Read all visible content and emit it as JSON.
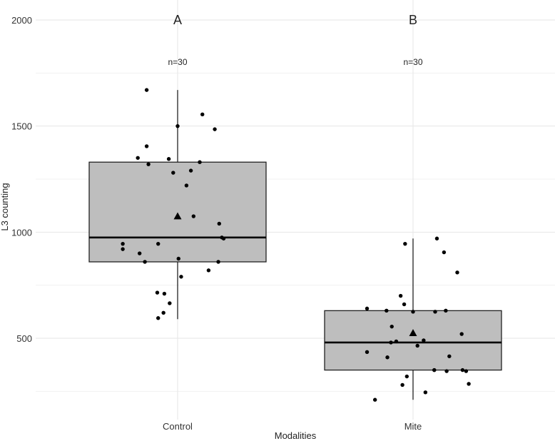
{
  "chart_data": {
    "type": "box",
    "title": "",
    "xlabel": "Modalities",
    "ylabel": "L3 counting",
    "ylim": [
      160,
      2050
    ],
    "yticks": [
      500,
      1000,
      1500,
      2000
    ],
    "categories": [
      "Control",
      "Mite"
    ],
    "groups": [
      {
        "name": "Control",
        "letter": "A",
        "n_label": "n=30",
        "box": {
          "min": 590,
          "q1": 860,
          "median": 975,
          "q3": 1330,
          "max": 1670
        },
        "mean": 1075,
        "points": [
          [
            -0.35,
            1670
          ],
          [
            -0.35,
            1405
          ],
          [
            -0.45,
            1350
          ],
          [
            -0.33,
            1320
          ],
          [
            -0.1,
            1345
          ],
          [
            0.0,
            1500
          ],
          [
            -0.05,
            1280
          ],
          [
            0.15,
            1290
          ],
          [
            0.25,
            1330
          ],
          [
            0.28,
            1555
          ],
          [
            0.42,
            1485
          ],
          [
            0.1,
            1220
          ],
          [
            0.18,
            1075
          ],
          [
            0.47,
            1040
          ],
          [
            0.5,
            975
          ],
          [
            0.52,
            970
          ],
          [
            -0.62,
            945
          ],
          [
            -0.22,
            945
          ],
          [
            -0.62,
            920
          ],
          [
            -0.43,
            900
          ],
          [
            -0.37,
            860
          ],
          [
            0.01,
            875
          ],
          [
            0.46,
            860
          ],
          [
            0.35,
            820
          ],
          [
            0.04,
            790
          ],
          [
            -0.23,
            715
          ],
          [
            -0.15,
            710
          ],
          [
            -0.09,
            665
          ],
          [
            -0.16,
            620
          ],
          [
            -0.22,
            595
          ]
        ]
      },
      {
        "name": "Mite",
        "letter": "B",
        "n_label": "n=30",
        "box": {
          "min": 210,
          "q1": 350,
          "median": 480,
          "q3": 630,
          "max": 970
        },
        "mean": 525,
        "points": [
          [
            0.27,
            970
          ],
          [
            -0.09,
            945
          ],
          [
            0.35,
            905
          ],
          [
            0.5,
            810
          ],
          [
            -0.14,
            700
          ],
          [
            -0.1,
            660
          ],
          [
            -0.52,
            640
          ],
          [
            -0.3,
            630
          ],
          [
            0.0,
            625
          ],
          [
            0.25,
            625
          ],
          [
            0.37,
            630
          ],
          [
            -0.24,
            555
          ],
          [
            0.55,
            520
          ],
          [
            0.12,
            490
          ],
          [
            -0.19,
            485
          ],
          [
            -0.25,
            480
          ],
          [
            0.05,
            465
          ],
          [
            -0.52,
            435
          ],
          [
            0.41,
            415
          ],
          [
            -0.29,
            410
          ],
          [
            0.24,
            350
          ],
          [
            0.38,
            345
          ],
          [
            0.56,
            350
          ],
          [
            0.6,
            345
          ],
          [
            0.63,
            285
          ],
          [
            -0.07,
            320
          ],
          [
            -0.12,
            280
          ],
          [
            0.14,
            245
          ],
          [
            -0.43,
            210
          ],
          [
            0.24,
            350
          ]
        ]
      }
    ],
    "legend": "none"
  }
}
